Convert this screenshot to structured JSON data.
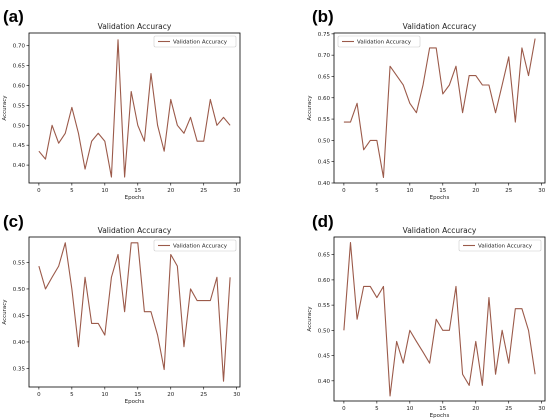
{
  "chart_data": [
    {
      "panel": "(a)",
      "type": "line",
      "title": "Validation Accuracy",
      "xlabel": "Epochs",
      "ylabel": "Accuracy",
      "legend": "top-right",
      "series": [
        {
          "name": "Validation Accuracy",
          "values": [
            0.435,
            0.415,
            0.5,
            0.455,
            0.48,
            0.545,
            0.48,
            0.39,
            0.46,
            0.48,
            0.46,
            0.37,
            0.715,
            0.37,
            0.585,
            0.5,
            0.46,
            0.63,
            0.5,
            0.435,
            0.565,
            0.5,
            0.48,
            0.52,
            0.46,
            0.46,
            0.565,
            0.5,
            0.52,
            0.5
          ]
        }
      ],
      "x": [
        0,
        1,
        2,
        3,
        4,
        5,
        6,
        7,
        8,
        9,
        10,
        11,
        12,
        13,
        14,
        15,
        16,
        17,
        18,
        19,
        20,
        21,
        22,
        23,
        24,
        25,
        26,
        27,
        28,
        29
      ],
      "xlim": [
        -1.5,
        30.5
      ],
      "ylim": [
        0.355,
        0.732
      ],
      "xticks": [
        0,
        5,
        10,
        15,
        20,
        25,
        30
      ],
      "yticks": [
        0.4,
        0.45,
        0.5,
        0.55,
        0.6,
        0.65,
        0.7
      ],
      "ytick_labels": [
        "0.40",
        "0.45",
        "0.50",
        "0.55",
        "0.60",
        "0.65",
        "0.70"
      ]
    },
    {
      "panel": "(b)",
      "type": "line",
      "title": "Validation Accuracy",
      "xlabel": "Epochs",
      "ylabel": "Accuracy",
      "legend": "top-left",
      "series": [
        {
          "name": "Validation Accuracy",
          "values": [
            0.543,
            0.543,
            0.587,
            0.478,
            0.5,
            0.5,
            0.413,
            0.674,
            0.652,
            0.63,
            0.587,
            0.565,
            0.63,
            0.717,
            0.717,
            0.609,
            0.63,
            0.674,
            0.565,
            0.652,
            0.652,
            0.63,
            0.63,
            0.565,
            0.63,
            0.696,
            0.543,
            0.717,
            0.652,
            0.739
          ]
        }
      ],
      "x": [
        0,
        1,
        2,
        3,
        4,
        5,
        6,
        7,
        8,
        9,
        10,
        11,
        12,
        13,
        14,
        15,
        16,
        17,
        18,
        19,
        20,
        21,
        22,
        23,
        24,
        25,
        26,
        27,
        28,
        29
      ],
      "xlim": [
        -1.5,
        30.5
      ],
      "ylim": [
        0.4,
        0.752
      ],
      "xticks": [
        0,
        5,
        10,
        15,
        20,
        25,
        30
      ],
      "yticks": [
        0.4,
        0.45,
        0.5,
        0.55,
        0.6,
        0.65,
        0.7,
        0.75
      ],
      "ytick_labels": [
        "0.40",
        "0.45",
        "0.50",
        "0.55",
        "0.60",
        "0.65",
        "0.70",
        "0.75"
      ]
    },
    {
      "panel": "(c)",
      "type": "line",
      "title": "Validation Accuracy",
      "xlabel": "Epochs",
      "ylabel": "Accuracy",
      "legend": "top-right",
      "series": [
        {
          "name": "Validation Accuracy",
          "values": [
            0.543,
            0.5,
            0.522,
            0.543,
            0.587,
            0.5,
            0.391,
            0.522,
            0.435,
            0.435,
            0.413,
            0.522,
            0.565,
            0.457,
            0.587,
            0.587,
            0.457,
            0.457,
            0.413,
            0.348,
            0.565,
            0.543,
            0.391,
            0.5,
            0.478,
            0.478,
            0.478,
            0.522,
            0.326,
            0.522
          ]
        }
      ],
      "x": [
        0,
        1,
        2,
        3,
        4,
        5,
        6,
        7,
        8,
        9,
        10,
        11,
        12,
        13,
        14,
        15,
        16,
        17,
        18,
        19,
        20,
        21,
        22,
        23,
        24,
        25,
        26,
        27,
        28,
        29
      ],
      "xlim": [
        -1.5,
        30.5
      ],
      "ylim": [
        0.315,
        0.598
      ],
      "xticks": [
        0,
        5,
        10,
        15,
        20,
        25,
        30
      ],
      "yticks": [
        0.35,
        0.4,
        0.45,
        0.5,
        0.55
      ],
      "ytick_labels": [
        "0.35",
        "0.40",
        "0.45",
        "0.50",
        "0.55"
      ]
    },
    {
      "panel": "(d)",
      "type": "line",
      "title": "Validation Accuracy",
      "xlabel": "Epochs",
      "ylabel": "Accuracy",
      "legend": "top-right",
      "series": [
        {
          "name": "Validation Accuracy",
          "values": [
            0.5,
            0.674,
            0.522,
            0.587,
            0.587,
            0.565,
            0.587,
            0.37,
            0.478,
            0.435,
            0.5,
            0.478,
            0.457,
            0.435,
            0.522,
            0.5,
            0.5,
            0.587,
            0.413,
            0.391,
            0.478,
            0.391,
            0.565,
            0.413,
            0.5,
            0.435,
            0.543,
            0.543,
            0.5,
            0.413
          ]
        }
      ],
      "x": [
        0,
        1,
        2,
        3,
        4,
        5,
        6,
        7,
        8,
        9,
        10,
        11,
        12,
        13,
        14,
        15,
        16,
        17,
        18,
        19,
        20,
        21,
        22,
        23,
        24,
        25,
        26,
        27,
        28,
        29
      ],
      "xlim": [
        -1.5,
        30.5
      ],
      "ylim": [
        0.36,
        0.685
      ],
      "xticks": [
        0,
        5,
        10,
        15,
        20,
        25,
        30
      ],
      "yticks": [
        0.4,
        0.45,
        0.5,
        0.55,
        0.6,
        0.65
      ],
      "ytick_labels": [
        "0.40",
        "0.45",
        "0.50",
        "0.55",
        "0.60",
        "0.65"
      ]
    }
  ],
  "colors": {
    "series": "#9b5a4a",
    "axis": "#000000",
    "background": "#ffffff"
  }
}
